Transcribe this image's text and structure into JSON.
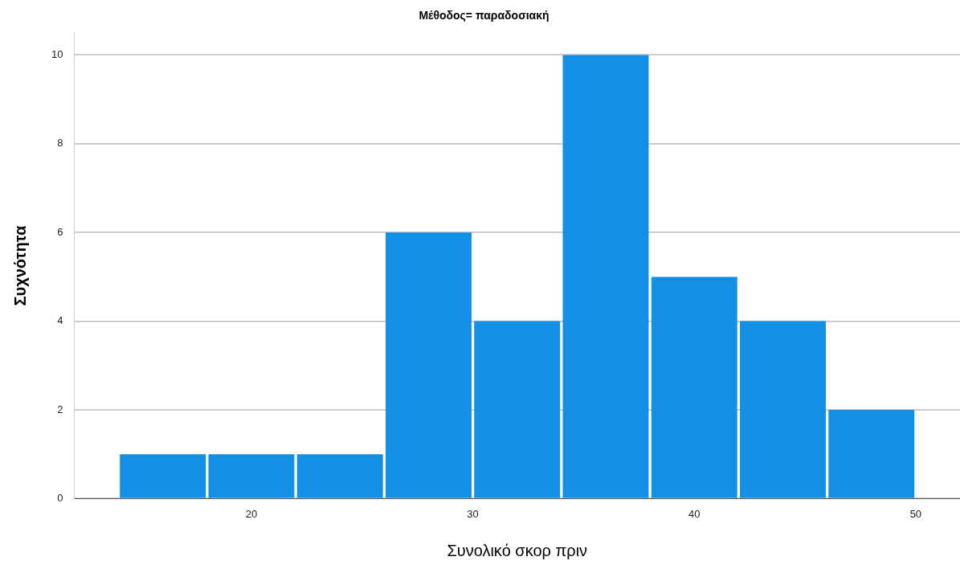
{
  "chart_data": {
    "type": "histogram",
    "title": "Μέθοδος= παραδοσιακή",
    "xlabel": "Συνολικό σκορ πριν",
    "ylabel": "Συχνότητα",
    "bins": [
      14,
      18,
      22,
      26,
      30,
      34,
      38,
      42,
      46,
      50
    ],
    "values": [
      1,
      1,
      1,
      6,
      4,
      10,
      5,
      4,
      2
    ],
    "color": "#1390e6",
    "xlim": [
      12,
      52
    ],
    "xticks": [
      20,
      30,
      40,
      50
    ],
    "ylim": [
      0,
      10.5
    ],
    "yticks": [
      0,
      2,
      4,
      6,
      8,
      10
    ],
    "grid": "y",
    "legend": false
  }
}
